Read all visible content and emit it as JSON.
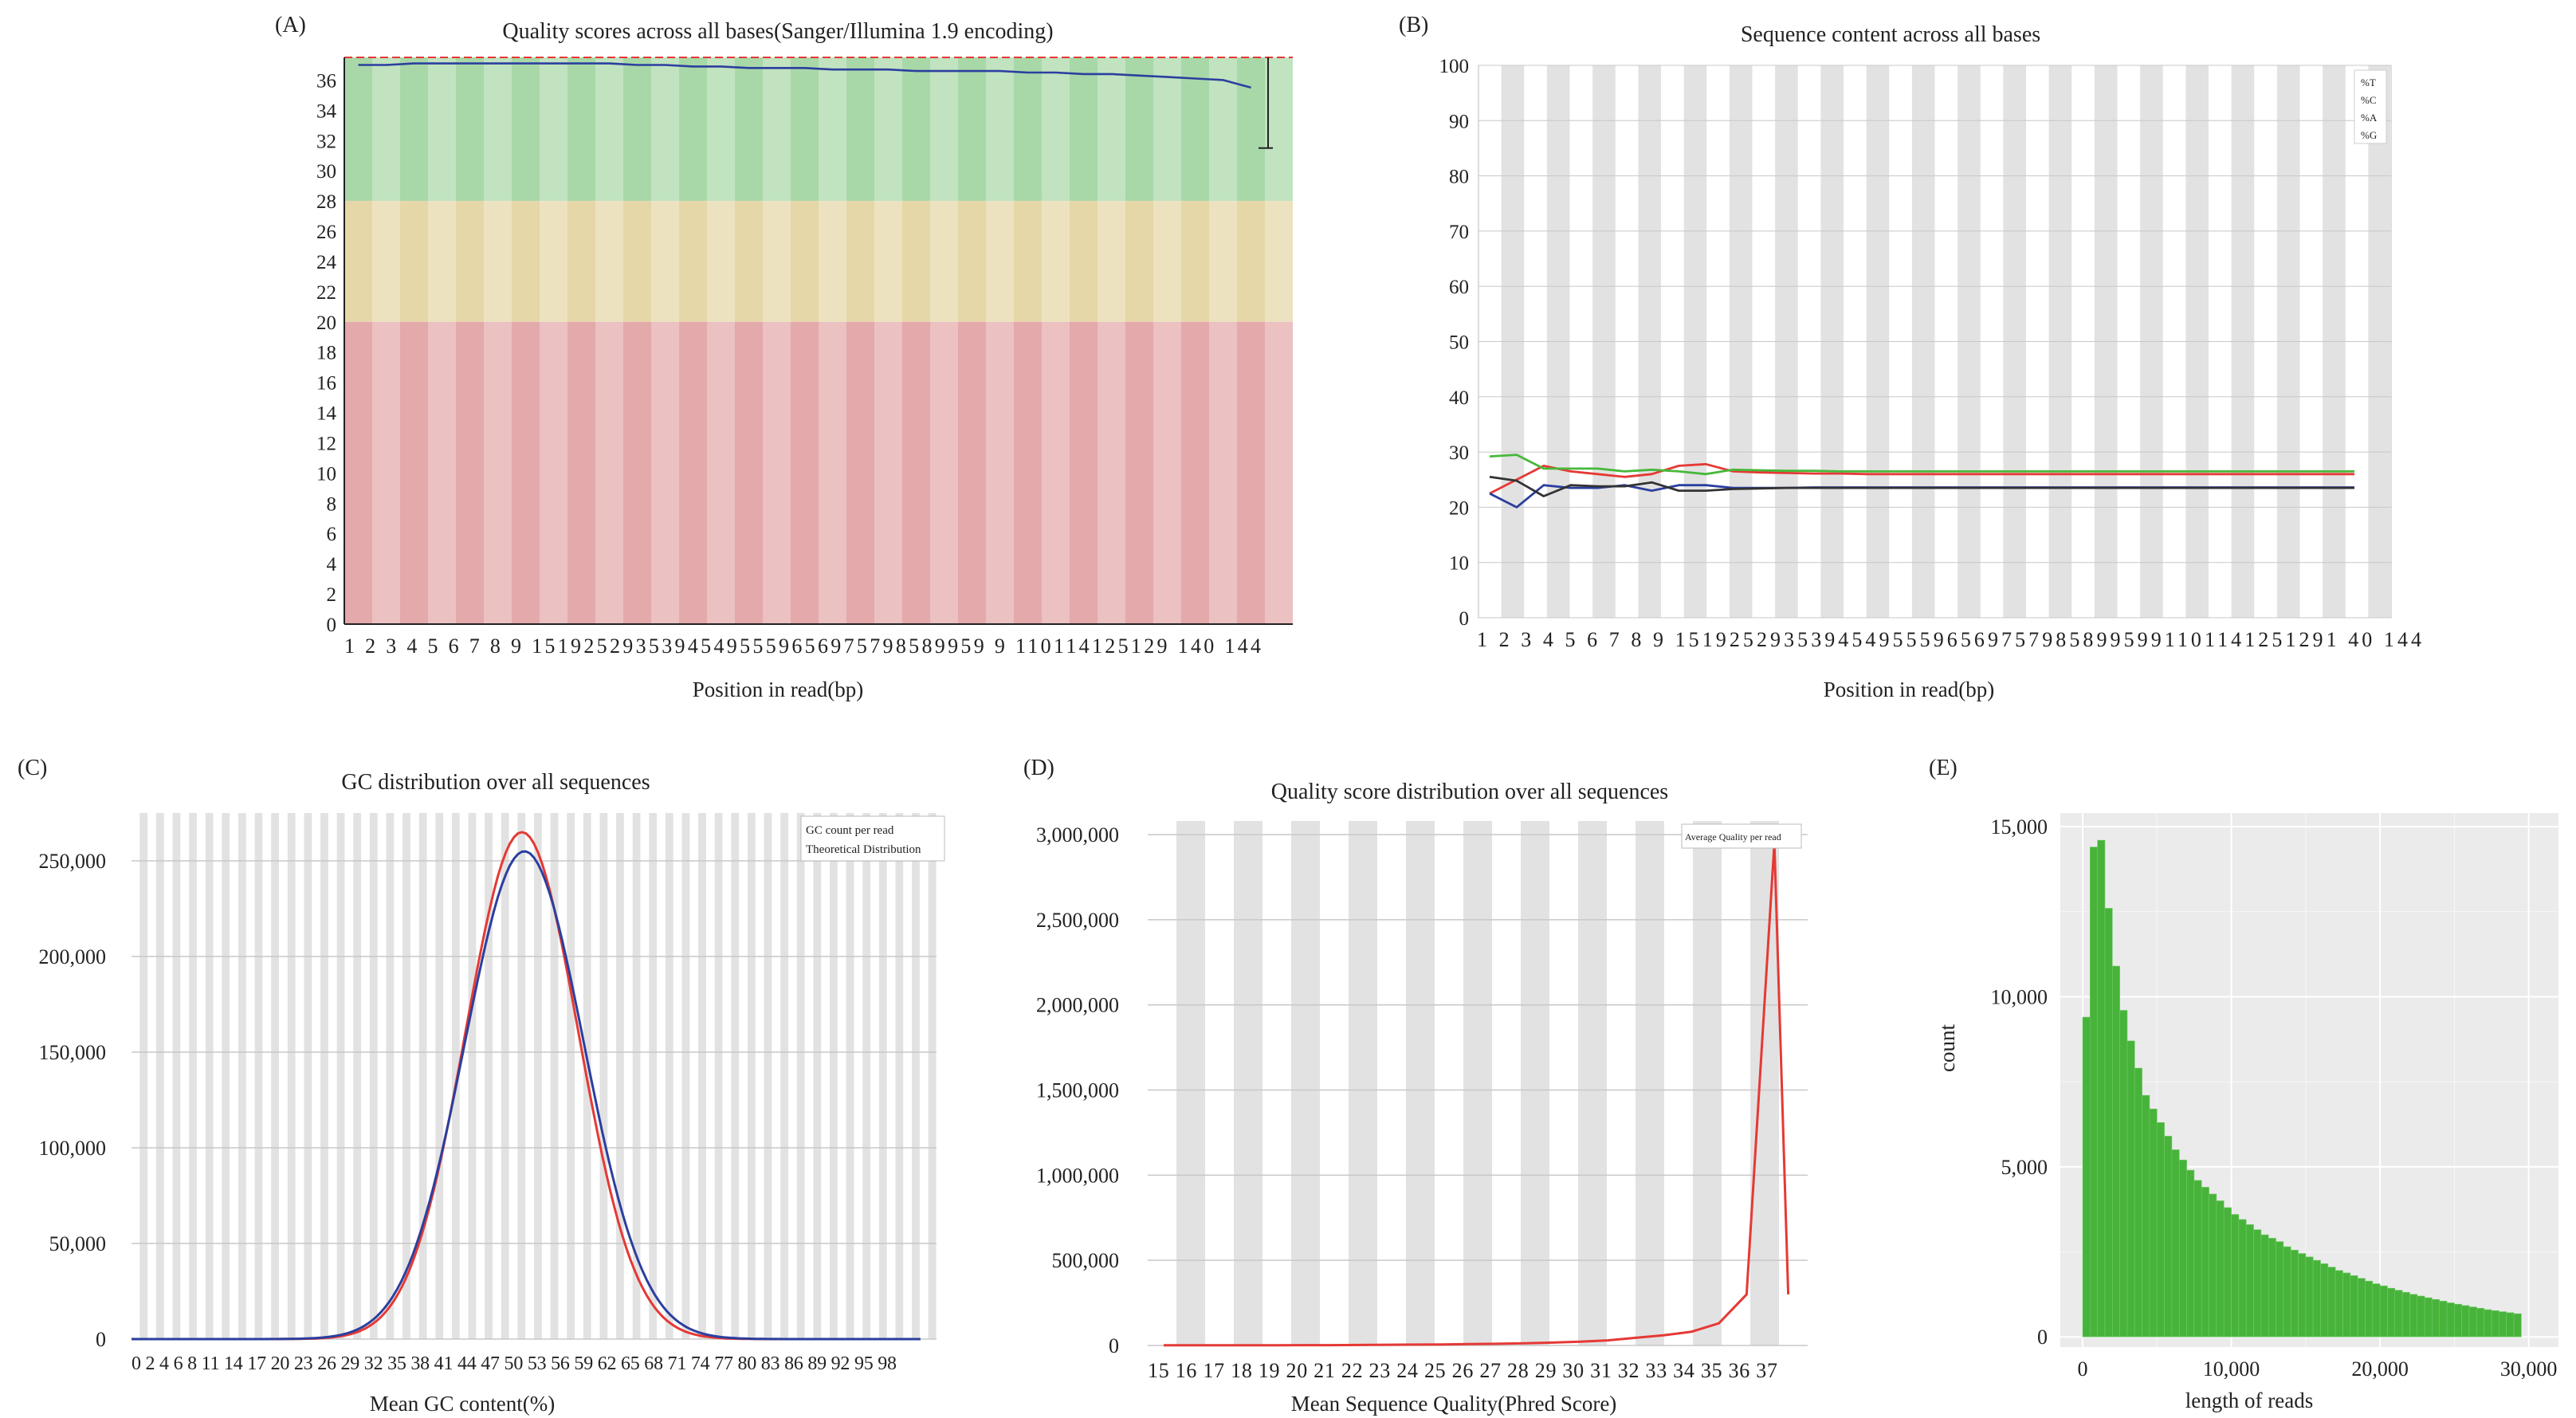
{
  "colors": {
    "good_zone": "#a9d8a8",
    "mid_zone": "#e6d7a8",
    "bad_zone": "#e4a9ab",
    "stripe": "#e2e2e2",
    "red": "#e53935",
    "blue": "#2b3f9e",
    "green": "#47b83a",
    "black": "#333333",
    "hist_fill": "#48b33b",
    "ggplot_bg": "#ebebeb"
  },
  "chart_data": [
    {
      "id": "A",
      "panel_label": "(A)",
      "type": "line",
      "title": "Quality scores across all bases(Sanger/Illumina 1.9 encoding)",
      "xlabel": "Position in read(bp)",
      "ylabel": "",
      "x_ticks": [
        "1",
        "2",
        "3",
        "4",
        "5",
        "6",
        "7",
        "8",
        "9",
        "15",
        "19",
        "25",
        "29",
        "35",
        "39",
        "45",
        "49",
        "55",
        "59",
        "65",
        "69",
        "75",
        "79",
        "85",
        "89",
        "95",
        "99",
        "110",
        "114",
        "125",
        "129",
        "140",
        "144"
      ],
      "x_tick_text": "1  2  3  4  5  6  7  8  9  15192529353945495559656975798589959 9  110114125129 140  144",
      "y_ticks": [
        "0",
        "2",
        "4",
        "6",
        "8",
        "10",
        "12",
        "14",
        "16",
        "18",
        "20",
        "22",
        "24",
        "26",
        "28",
        "30",
        "32",
        "34",
        "36"
      ],
      "ylim": [
        0,
        37.5
      ],
      "zones": [
        {
          "from": 28,
          "to": 37.5,
          "zone": "good"
        },
        {
          "from": 20,
          "to": 28,
          "zone": "mid"
        },
        {
          "from": 0,
          "to": 20,
          "zone": "bad"
        }
      ],
      "series": [
        {
          "color_key": "blue",
          "values": [
            37.0,
            37.0,
            37.1,
            37.1,
            37.1,
            37.1,
            37.1,
            37.1,
            37.1,
            37.1,
            37.0,
            37.0,
            36.9,
            36.9,
            36.8,
            36.8,
            36.8,
            36.7,
            36.7,
            36.7,
            36.6,
            36.6,
            36.6,
            36.6,
            36.5,
            36.5,
            36.4,
            36.4,
            36.3,
            36.2,
            36.1,
            36.0,
            35.5
          ]
        }
      ],
      "error_bar": {
        "x_index": 33,
        "low": 31.5,
        "high": 37.5
      }
    },
    {
      "id": "B",
      "panel_label": "(B)",
      "type": "line",
      "title": "Sequence content across all bases",
      "xlabel": "Position in read(bp)",
      "x_ticks": [
        "1",
        "2",
        "3",
        "4",
        "5",
        "6",
        "7",
        "8",
        "9",
        "15",
        "19",
        "25",
        "29",
        "35",
        "39",
        "45",
        "49",
        "55",
        "59",
        "65",
        "69",
        "75",
        "79",
        "85",
        "89",
        "95",
        "99",
        "110",
        "114",
        "125",
        "129",
        "140",
        "144"
      ],
      "x_tick_text": "1  2  3  4  5  6  7  8  9  1519252935394549555965697579858995991101141251291 40  144",
      "y_ticks": [
        "0",
        "10",
        "20",
        "30",
        "40",
        "50",
        "60",
        "70",
        "80",
        "90",
        "100"
      ],
      "ylim": [
        0,
        100
      ],
      "legend": {
        "position": "top-right",
        "entries": [
          "%T",
          "%C",
          "%A",
          "%G"
        ]
      },
      "series": [
        {
          "name": "%T",
          "color_key": "red",
          "values": [
            22.5,
            25,
            27.5,
            26.5,
            26,
            25.5,
            26,
            27.5,
            27.8,
            26.5,
            26.3,
            26.2,
            26.1,
            26.1,
            26,
            26,
            26,
            26,
            26,
            26,
            26,
            26,
            26,
            26,
            26,
            26,
            26,
            26,
            26,
            26,
            26,
            26,
            26
          ]
        },
        {
          "name": "%C",
          "color_key": "blue",
          "values": [
            22.5,
            20,
            24,
            23.5,
            23.5,
            24,
            23,
            24,
            24,
            23.5,
            23.5,
            23.5,
            23.6,
            23.6,
            23.6,
            23.6,
            23.6,
            23.6,
            23.6,
            23.6,
            23.6,
            23.6,
            23.6,
            23.6,
            23.6,
            23.6,
            23.6,
            23.6,
            23.6,
            23.6,
            23.6,
            23.6,
            23.6
          ]
        },
        {
          "name": "%A",
          "color_key": "green",
          "values": [
            29.2,
            29.5,
            27,
            27,
            27,
            26.5,
            26.8,
            26.5,
            26,
            26.8,
            26.7,
            26.6,
            26.6,
            26.5,
            26.5,
            26.5,
            26.5,
            26.5,
            26.5,
            26.5,
            26.5,
            26.5,
            26.5,
            26.5,
            26.5,
            26.5,
            26.5,
            26.5,
            26.5,
            26.5,
            26.5,
            26.5,
            26.5
          ]
        },
        {
          "name": "%G",
          "color_key": "black",
          "values": [
            25.5,
            24.8,
            22,
            24,
            23.8,
            23.8,
            24.5,
            23,
            23,
            23.3,
            23.4,
            23.5,
            23.5,
            23.5,
            23.5,
            23.5,
            23.5,
            23.5,
            23.5,
            23.5,
            23.5,
            23.5,
            23.5,
            23.5,
            23.5,
            23.5,
            23.5,
            23.5,
            23.5,
            23.5,
            23.5,
            23.5,
            23.5
          ]
        }
      ]
    },
    {
      "id": "C",
      "panel_label": "(C)",
      "type": "line",
      "title": "GC distribution over all sequences",
      "xlabel": "Mean GC content(%)",
      "x_tick_text": "0 2 4 6 8   11 14 17 20 23 26 29 32 35 38 41 44 47 50 53 56 59 62 65 68 71 74 77 80 83 86 89 92 95 98",
      "x_range": [
        0,
        100
      ],
      "y_ticks": [
        "0",
        "50,000",
        "100,000",
        "150,000",
        "200,000",
        "250,000"
      ],
      "ylim": [
        0,
        275000
      ],
      "legend": {
        "position": "top-right",
        "entries": [
          "GC count per read",
          "Theoretical Distribution"
        ]
      },
      "series": [
        {
          "name": "GC count per read",
          "color_key": "red",
          "mean": 48.5,
          "sd": 7.0,
          "peak": 265000
        },
        {
          "name": "Theoretical Distribution",
          "color_key": "blue",
          "mean": 48.8,
          "sd": 7.4,
          "peak": 255000
        }
      ]
    },
    {
      "id": "D",
      "panel_label": "(D)",
      "type": "line",
      "title": "Quality score distribution over all sequences",
      "xlabel": "Mean Sequence Quality(Phred Score)",
      "x_ticks": [
        "15",
        "16",
        "17",
        "18",
        "19",
        "20",
        "21",
        "22",
        "23",
        "24",
        "25",
        "26",
        "27",
        "28",
        "29",
        "30",
        "31",
        "32",
        "33",
        "34",
        "35",
        "36",
        "37"
      ],
      "x_tick_text": "15 16 17 18 19 20 21 22 23 24 25 26 27 28 29 30 31 32 33 34 35 36 37",
      "y_ticks": [
        "0",
        "500,000",
        "1,000,000",
        "1,500,000",
        "2,000,000",
        "2,500,000",
        "3,000,000"
      ],
      "ylim": [
        0,
        3080000
      ],
      "legend": {
        "position": "top-right",
        "entries": [
          "Average Quality per read"
        ]
      },
      "series": [
        {
          "name": "Average Quality per read",
          "color_key": "red",
          "x": [
            15,
            16,
            17,
            18,
            19,
            20,
            21,
            22,
            23,
            24,
            25,
            26,
            27,
            28,
            29,
            30,
            31,
            32,
            33,
            34,
            35,
            36,
            37,
            37.5
          ],
          "values": [
            1000,
            1000,
            1000,
            1000,
            1500,
            2000,
            2000,
            3000,
            4000,
            5000,
            6000,
            8000,
            10000,
            13000,
            17000,
            22000,
            30000,
            45000,
            60000,
            80000,
            130000,
            300000,
            2950000,
            300000
          ]
        }
      ]
    },
    {
      "id": "E",
      "panel_label": "(E)",
      "type": "bar",
      "title": "",
      "xlabel": "length of reads",
      "ylabel": "count",
      "x_ticks": [
        "0",
        "10,000",
        "20,000",
        "30,000"
      ],
      "x_tick_values": [
        0,
        10000,
        20000,
        30000
      ],
      "y_ticks": [
        "0",
        "5,000",
        "10,000",
        "15,000"
      ],
      "y_tick_values": [
        0,
        5000,
        10000,
        15000
      ],
      "xlim": [
        -1500,
        32000
      ],
      "ylim": [
        -300,
        15400
      ],
      "bin_width": 500,
      "bin_start": 0,
      "values": [
        9400,
        14400,
        14600,
        12600,
        10900,
        9600,
        8700,
        7900,
        7100,
        6700,
        6300,
        5900,
        5500,
        5200,
        4900,
        4600,
        4400,
        4200,
        4000,
        3800,
        3600,
        3450,
        3300,
        3150,
        3000,
        2900,
        2800,
        2650,
        2550,
        2450,
        2350,
        2250,
        2150,
        2050,
        1950,
        1880,
        1800,
        1720,
        1640,
        1560,
        1500,
        1430,
        1370,
        1310,
        1250,
        1200,
        1150,
        1100,
        1050,
        1000,
        960,
        920,
        880,
        840,
        800,
        770,
        740,
        710,
        680
      ]
    }
  ]
}
